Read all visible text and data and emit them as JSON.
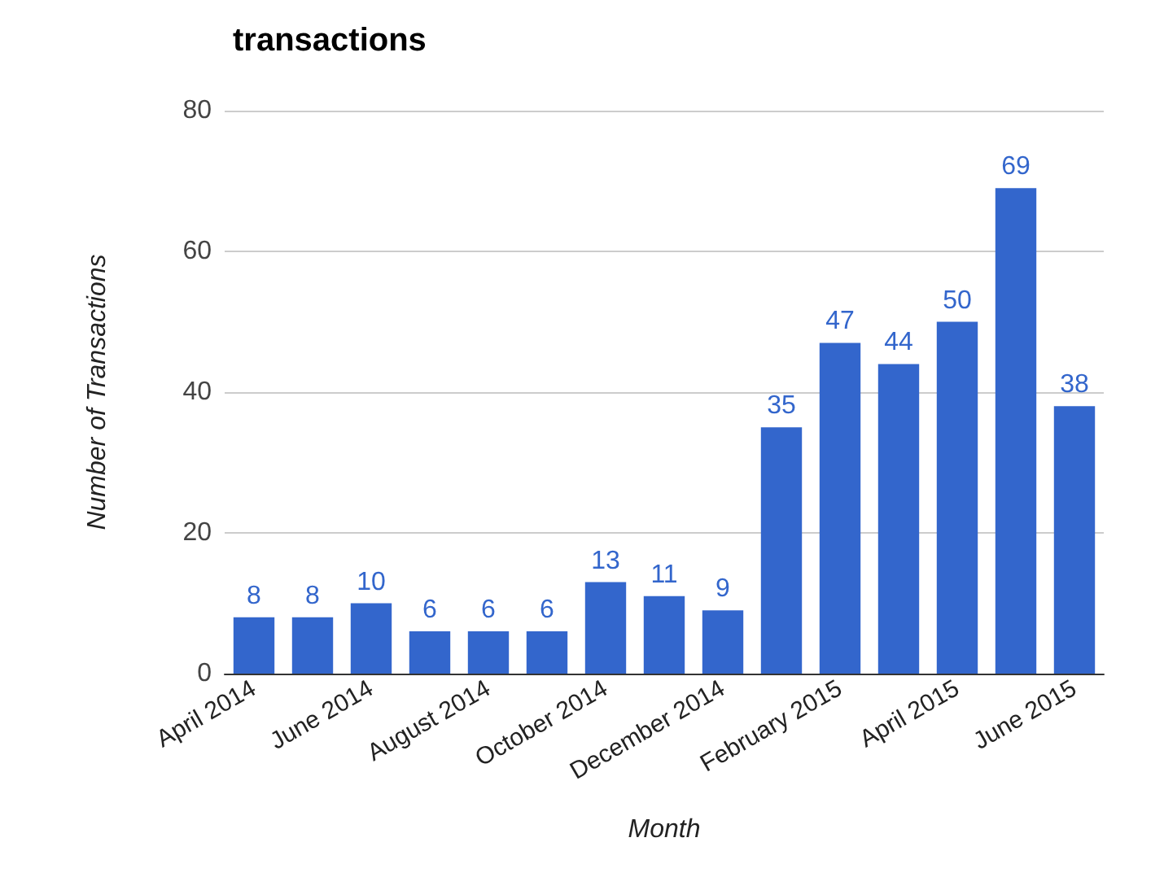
{
  "chart_data": {
    "type": "bar",
    "title": "transactions",
    "xlabel": "Month",
    "ylabel": "Number of Transactions",
    "categories": [
      "April 2014",
      null,
      "June 2014",
      null,
      "August 2014",
      null,
      "October 2014",
      null,
      "December 2014",
      null,
      "February 2015",
      null,
      "April 2015",
      null,
      "June 2015"
    ],
    "values": [
      8,
      8,
      10,
      6,
      6,
      6,
      13,
      11,
      9,
      35,
      47,
      44,
      50,
      69,
      38
    ],
    "color": "#3366cc",
    "ylim": [
      0,
      80
    ],
    "yticks": [
      0,
      20,
      40,
      60,
      80
    ],
    "grid": "y",
    "data_labels": true
  }
}
